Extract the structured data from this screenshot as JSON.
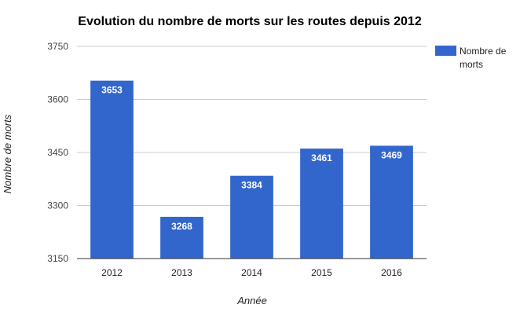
{
  "chart_data": {
    "type": "bar",
    "title": "Evolution du nombre de morts sur les routes depuis 2012",
    "xlabel": "Année",
    "ylabel": "Nombre de morts",
    "categories": [
      "2012",
      "2013",
      "2014",
      "2015",
      "2016"
    ],
    "series": [
      {
        "name": "Nombre de morts",
        "values": [
          3653,
          3268,
          3384,
          3461,
          3469
        ],
        "data_labels": [
          "3653",
          "3268",
          "3384",
          "3461",
          "3469"
        ],
        "color": "#3366cc"
      }
    ],
    "ylim": [
      3150,
      3750
    ],
    "yticks": [
      3150,
      3300,
      3450,
      3600,
      3750
    ],
    "ytick_labels": [
      "3150",
      "3300",
      "3450",
      "3600",
      "3750"
    ],
    "grid": true,
    "legend_position": "right",
    "legend_lines": [
      "Nombre de",
      "morts"
    ]
  }
}
